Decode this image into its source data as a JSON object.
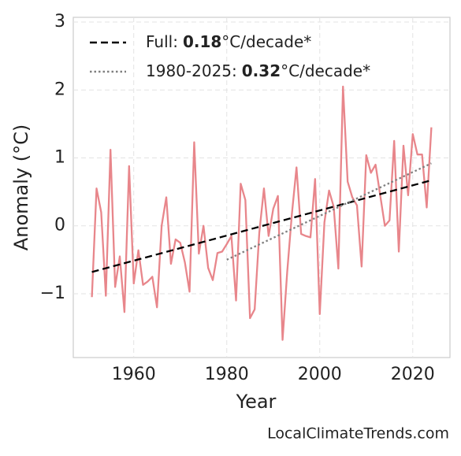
{
  "chart_data": {
    "type": "line",
    "xlabel": "Year",
    "ylabel": "Anomaly (°C)",
    "watermark": "LocalClimateTrends.com",
    "x": [
      1951,
      1952,
      1953,
      1954,
      1955,
      1956,
      1957,
      1958,
      1959,
      1960,
      1961,
      1962,
      1963,
      1964,
      1965,
      1966,
      1967,
      1968,
      1969,
      1970,
      1971,
      1972,
      1973,
      1974,
      1975,
      1976,
      1977,
      1978,
      1979,
      1980,
      1981,
      1982,
      1983,
      1984,
      1985,
      1986,
      1987,
      1988,
      1989,
      1990,
      1991,
      1992,
      1993,
      1994,
      1995,
      1996,
      1997,
      1998,
      1999,
      2000,
      2001,
      2002,
      2003,
      2004,
      2005,
      2006,
      2007,
      2008,
      2009,
      2010,
      2011,
      2012,
      2013,
      2014,
      2015,
      2016,
      2017,
      2018,
      2019,
      2020,
      2021,
      2022,
      2023,
      2024
    ],
    "values": [
      -1.05,
      0.55,
      0.2,
      -1.03,
      1.12,
      -0.9,
      -0.45,
      -1.27,
      0.88,
      -0.85,
      -0.36,
      -0.87,
      -0.82,
      -0.75,
      -1.2,
      0.0,
      0.42,
      -0.56,
      -0.2,
      -0.25,
      -0.54,
      -0.97,
      1.23,
      -0.41,
      0.0,
      -0.62,
      -0.8,
      -0.4,
      -0.38,
      -0.27,
      -0.15,
      -1.1,
      0.62,
      0.38,
      -1.36,
      -1.23,
      -0.1,
      0.55,
      -0.15,
      0.25,
      0.44,
      -1.68,
      -0.68,
      0.17,
      0.86,
      -0.12,
      -0.15,
      -0.17,
      0.69,
      -1.3,
      0.05,
      0.52,
      0.28,
      -0.63,
      2.05,
      0.65,
      0.42,
      0.3,
      -0.6,
      1.04,
      0.78,
      0.9,
      0.45,
      0.0,
      0.08,
      1.25,
      -0.38,
      1.18,
      0.45,
      1.35,
      1.05,
      1.05,
      0.27,
      1.45
    ],
    "color": "#e8868b",
    "trends": [
      {
        "name": "Full:",
        "slope": 0.18,
        "unit": "°C/decade*",
        "color": "#000000",
        "style": "dashed",
        "x": [
          1951,
          2024
        ],
        "values": [
          -0.68,
          0.67
        ]
      },
      {
        "name": "1980-2025:",
        "slope": 0.32,
        "unit": "°C/decade*",
        "color": "#808080",
        "style": "dotted",
        "x": [
          1980,
          2024
        ],
        "values": [
          -0.5,
          0.92
        ]
      }
    ],
    "xlim": [
      1947,
      2028
    ],
    "ylim": [
      -1.94,
      3.07
    ],
    "xticks": [
      1960,
      1980,
      2000,
      2020
    ],
    "yticks": [
      {
        "value": -1,
        "label": "−1"
      },
      0,
      1,
      2,
      3
    ],
    "grid": true,
    "legend": "upper left"
  }
}
